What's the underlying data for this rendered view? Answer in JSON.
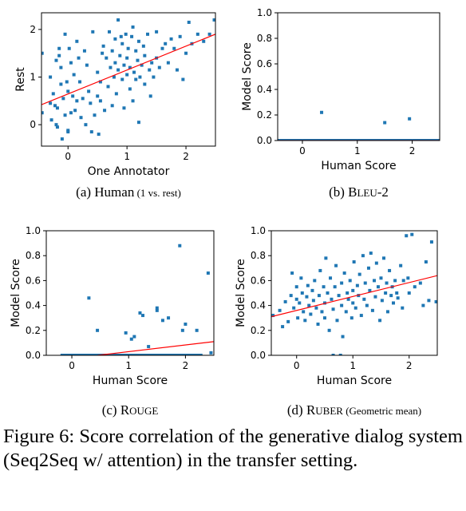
{
  "chart_data": [
    {
      "type": "scatter",
      "panel": "(a)",
      "subcaption_main": "Human",
      "subcaption_note": "(1 vs. rest)",
      "xlabel": "One Annotator",
      "ylabel": "Rest",
      "xlim": [
        -0.45,
        2.5
      ],
      "ylim": [
        -0.45,
        2.35
      ],
      "xticks": [
        "0",
        "1",
        "2"
      ],
      "xtick_values": [
        0,
        1,
        2
      ],
      "yticks": [
        "0",
        "1",
        "2"
      ],
      "ytick_values": [
        0,
        1,
        2
      ],
      "point_color": "#1f77b4",
      "fit_color": "#ff0000",
      "fit_line": [
        [
          -0.45,
          0.42
        ],
        [
          2.5,
          1.9
        ]
      ],
      "points": [
        [
          -0.44,
          1.5
        ],
        [
          -0.44,
          0.25
        ],
        [
          -0.3,
          0.45
        ],
        [
          -0.3,
          1.0
        ],
        [
          -0.28,
          0.1
        ],
        [
          -0.25,
          0.65
        ],
        [
          -0.22,
          0.4
        ],
        [
          -0.2,
          1.35
        ],
        [
          -0.2,
          0.0
        ],
        [
          -0.18,
          -0.05
        ],
        [
          -0.18,
          0.35
        ],
        [
          -0.15,
          1.45
        ],
        [
          -0.15,
          1.6
        ],
        [
          -0.12,
          1.2
        ],
        [
          -0.12,
          0.85
        ],
        [
          -0.1,
          -0.3
        ],
        [
          -0.08,
          0.55
        ],
        [
          -0.05,
          0.2
        ],
        [
          -0.05,
          1.9
        ],
        [
          -0.02,
          0.9
        ],
        [
          0.0,
          0.7
        ],
        [
          0.0,
          -0.15
        ],
        [
          0.0,
          -0.12
        ],
        [
          0.02,
          1.6
        ],
        [
          0.05,
          0.25
        ],
        [
          0.05,
          1.3
        ],
        [
          0.08,
          0.6
        ],
        [
          0.1,
          1.05
        ],
        [
          0.12,
          0.3
        ],
        [
          0.15,
          1.75
        ],
        [
          0.15,
          0.5
        ],
        [
          0.18,
          1.4
        ],
        [
          0.2,
          0.9
        ],
        [
          0.22,
          0.15
        ],
        [
          0.25,
          0.55
        ],
        [
          0.28,
          1.55
        ],
        [
          0.3,
          0.0
        ],
        [
          0.32,
          1.25
        ],
        [
          0.35,
          0.7
        ],
        [
          0.38,
          0.45
        ],
        [
          0.4,
          -0.15
        ],
        [
          0.42,
          1.95
        ],
        [
          0.45,
          0.2
        ],
        [
          0.5,
          0.6
        ],
        [
          0.5,
          1.1
        ],
        [
          0.52,
          -0.2
        ],
        [
          0.55,
          0.9
        ],
        [
          0.55,
          0.5
        ],
        [
          0.58,
          1.5
        ],
        [
          0.6,
          1.65
        ],
        [
          0.62,
          0.3
        ],
        [
          0.65,
          1.4
        ],
        [
          0.68,
          0.8
        ],
        [
          0.7,
          1.95
        ],
        [
          0.72,
          1.2
        ],
        [
          0.75,
          0.4
        ],
        [
          0.75,
          1.55
        ],
        [
          0.78,
          1.0
        ],
        [
          0.8,
          1.3
        ],
        [
          0.8,
          1.8
        ],
        [
          0.82,
          0.65
        ],
        [
          0.85,
          2.2
        ],
        [
          0.85,
          1.15
        ],
        [
          0.88,
          1.45
        ],
        [
          0.9,
          1.85
        ],
        [
          0.92,
          0.95
        ],
        [
          0.92,
          1.7
        ],
        [
          0.95,
          0.35
        ],
        [
          0.95,
          1.25
        ],
        [
          0.98,
          1.9
        ],
        [
          1.0,
          1.4
        ],
        [
          1.0,
          1.05
        ],
        [
          1.02,
          1.6
        ],
        [
          1.05,
          0.75
        ],
        [
          1.05,
          1.2
        ],
        [
          1.08,
          1.85
        ],
        [
          1.1,
          2.05
        ],
        [
          1.1,
          0.5
        ],
        [
          1.12,
          1.1
        ],
        [
          1.15,
          1.55
        ],
        [
          1.15,
          0.95
        ],
        [
          1.18,
          1.35
        ],
        [
          1.2,
          1.75
        ],
        [
          1.2,
          0.05
        ],
        [
          1.22,
          1.0
        ],
        [
          1.25,
          1.25
        ],
        [
          1.28,
          1.65
        ],
        [
          1.3,
          0.85
        ],
        [
          1.3,
          1.45
        ],
        [
          1.35,
          1.9
        ],
        [
          1.38,
          1.15
        ],
        [
          1.4,
          0.6
        ],
        [
          1.42,
          1.3
        ],
        [
          1.45,
          1.0
        ],
        [
          1.5,
          1.4
        ],
        [
          1.5,
          1.95
        ],
        [
          1.55,
          1.2
        ],
        [
          1.6,
          1.6
        ],
        [
          1.65,
          1.7
        ],
        [
          1.7,
          1.3
        ],
        [
          1.75,
          1.8
        ],
        [
          1.8,
          1.6
        ],
        [
          1.85,
          1.15
        ],
        [
          1.9,
          1.85
        ],
        [
          1.95,
          0.95
        ],
        [
          2.0,
          1.5
        ],
        [
          2.05,
          2.15
        ],
        [
          2.1,
          1.7
        ],
        [
          2.2,
          1.9
        ],
        [
          2.3,
          1.75
        ],
        [
          2.4,
          1.9
        ],
        [
          2.48,
          2.2
        ]
      ]
    },
    {
      "type": "scatter",
      "panel": "(b)",
      "subcaption_main": "B",
      "subcaption_sc": "LEU",
      "subcaption_tail": "-2",
      "xlabel": "Human Score",
      "ylabel": "Model Score",
      "xlim": [
        -0.45,
        2.5
      ],
      "ylim": [
        0.0,
        1.0
      ],
      "xticks": [
        "0",
        "1",
        "2"
      ],
      "xtick_values": [
        0,
        1,
        2
      ],
      "yticks": [
        "0.0",
        "0.2",
        "0.4",
        "0.6",
        "0.8",
        "1.0"
      ],
      "ytick_values": [
        0.0,
        0.2,
        0.4,
        0.6,
        0.8,
        1.0
      ],
      "point_color": "#1f77b4",
      "fit_color": "#ff0000",
      "fit_line": [
        [
          -0.45,
          0.0
        ],
        [
          2.5,
          0.0
        ]
      ],
      "points": [
        [
          0.35,
          0.22
        ],
        [
          1.5,
          0.14
        ],
        [
          1.95,
          0.17
        ]
      ],
      "zero_band": [
        -0.45,
        2.5
      ]
    },
    {
      "type": "scatter",
      "panel": "(c)",
      "subcaption_main": "R",
      "subcaption_sc": "OUGE",
      "subcaption_tail": "",
      "xlabel": "Human Score",
      "ylabel": "Model Score",
      "xlim": [
        -0.45,
        2.5
      ],
      "ylim": [
        0.0,
        1.0
      ],
      "xticks": [
        "0",
        "1",
        "2"
      ],
      "xtick_values": [
        0,
        1,
        2
      ],
      "yticks": [
        "0.0",
        "0.2",
        "0.4",
        "0.6",
        "0.8",
        "1.0"
      ],
      "ytick_values": [
        0.0,
        0.2,
        0.4,
        0.6,
        0.8,
        1.0
      ],
      "point_color": "#1f77b4",
      "fit_color": "#ff0000",
      "fit_line": [
        [
          0.45,
          0.0
        ],
        [
          2.5,
          0.11
        ]
      ],
      "points": [
        [
          0.3,
          0.46
        ],
        [
          0.45,
          0.2
        ],
        [
          0.95,
          0.18
        ],
        [
          1.05,
          0.13
        ],
        [
          1.1,
          0.15
        ],
        [
          1.2,
          0.34
        ],
        [
          1.25,
          0.32
        ],
        [
          1.35,
          0.07
        ],
        [
          1.5,
          0.38
        ],
        [
          1.5,
          0.36
        ],
        [
          1.6,
          0.28
        ],
        [
          1.7,
          0.3
        ],
        [
          1.9,
          0.88
        ],
        [
          1.95,
          0.2
        ],
        [
          2.0,
          0.25
        ],
        [
          2.2,
          0.2
        ],
        [
          2.4,
          0.66
        ],
        [
          2.45,
          0.02
        ]
      ],
      "zero_band": [
        -0.2,
        2.3
      ]
    },
    {
      "type": "scatter",
      "panel": "(d)",
      "subcaption_main": "R",
      "subcaption_sc": "UBER",
      "subcaption_note": "(Geometric mean)",
      "xlabel": "Human Score",
      "ylabel": "Model Score",
      "xlim": [
        -0.45,
        2.5
      ],
      "ylim": [
        0.0,
        1.0
      ],
      "xticks": [
        "0",
        "1",
        "2"
      ],
      "xtick_values": [
        0,
        1,
        2
      ],
      "yticks": [
        "0.0",
        "0.2",
        "0.4",
        "0.6",
        "0.8",
        "1.0"
      ],
      "ytick_values": [
        0.0,
        0.2,
        0.4,
        0.6,
        0.8,
        1.0
      ],
      "point_color": "#1f77b4",
      "fit_color": "#ff0000",
      "fit_line": [
        [
          -0.45,
          0.31
        ],
        [
          2.5,
          0.64
        ]
      ],
      "points": [
        [
          -0.42,
          0.32
        ],
        [
          -0.3,
          0.36
        ],
        [
          -0.25,
          0.23
        ],
        [
          -0.2,
          0.43
        ],
        [
          -0.15,
          0.27
        ],
        [
          -0.1,
          0.48
        ],
        [
          -0.08,
          0.66
        ],
        [
          -0.05,
          0.38
        ],
        [
          0.0,
          0.45
        ],
        [
          0.0,
          0.55
        ],
        [
          0.02,
          0.3
        ],
        [
          0.05,
          0.42
        ],
        [
          0.08,
          0.62
        ],
        [
          0.1,
          0.5
        ],
        [
          0.12,
          0.35
        ],
        [
          0.15,
          0.28
        ],
        [
          0.18,
          0.47
        ],
        [
          0.2,
          0.56
        ],
        [
          0.22,
          0.4
        ],
        [
          0.25,
          0.33
        ],
        [
          0.28,
          0.52
        ],
        [
          0.3,
          0.44
        ],
        [
          0.32,
          0.6
        ],
        [
          0.35,
          0.38
        ],
        [
          0.38,
          0.25
        ],
        [
          0.4,
          0.48
        ],
        [
          0.42,
          0.68
        ],
        [
          0.45,
          0.35
        ],
        [
          0.48,
          0.55
        ],
        [
          0.5,
          0.3
        ],
        [
          0.5,
          0.42
        ],
        [
          0.52,
          0.78
        ],
        [
          0.55,
          0.5
        ],
        [
          0.58,
          0.2
        ],
        [
          0.6,
          0.62
        ],
        [
          0.62,
          0.45
        ],
        [
          0.65,
          0.0
        ],
        [
          0.65,
          0.37
        ],
        [
          0.68,
          0.55
        ],
        [
          0.7,
          0.72
        ],
        [
          0.72,
          0.28
        ],
        [
          0.75,
          0.48
        ],
        [
          0.78,
          0.0
        ],
        [
          0.8,
          0.4
        ],
        [
          0.8,
          0.58
        ],
        [
          0.82,
          0.15
        ],
        [
          0.85,
          0.66
        ],
        [
          0.88,
          0.35
        ],
        [
          0.9,
          0.5
        ],
        [
          0.92,
          0.45
        ],
        [
          0.95,
          0.6
        ],
        [
          0.98,
          0.3
        ],
        [
          1.0,
          0.52
        ],
        [
          1.0,
          0.42
        ],
        [
          1.02,
          0.75
        ],
        [
          1.05,
          0.38
        ],
        [
          1.08,
          0.56
        ],
        [
          1.1,
          0.48
        ],
        [
          1.12,
          0.65
        ],
        [
          1.15,
          0.32
        ],
        [
          1.18,
          0.8
        ],
        [
          1.2,
          0.45
        ],
        [
          1.22,
          0.58
        ],
        [
          1.25,
          0.4
        ],
        [
          1.28,
          0.7
        ],
        [
          1.3,
          0.52
        ],
        [
          1.32,
          0.82
        ],
        [
          1.35,
          0.36
        ],
        [
          1.38,
          0.6
        ],
        [
          1.4,
          0.47
        ],
        [
          1.42,
          0.74
        ],
        [
          1.45,
          0.55
        ],
        [
          1.48,
          0.28
        ],
        [
          1.5,
          0.62
        ],
        [
          1.52,
          0.44
        ],
        [
          1.55,
          0.78
        ],
        [
          1.58,
          0.5
        ],
        [
          1.6,
          0.58
        ],
        [
          1.62,
          0.35
        ],
        [
          1.65,
          0.68
        ],
        [
          1.68,
          0.48
        ],
        [
          1.7,
          0.55
        ],
        [
          1.72,
          0.42
        ],
        [
          1.75,
          0.6
        ],
        [
          1.78,
          0.5
        ],
        [
          1.8,
          0.46
        ],
        [
          1.85,
          0.72
        ],
        [
          1.88,
          0.38
        ],
        [
          1.9,
          0.6
        ],
        [
          1.95,
          0.96
        ],
        [
          1.98,
          0.62
        ],
        [
          2.0,
          0.5
        ],
        [
          2.05,
          0.97
        ],
        [
          2.1,
          0.55
        ],
        [
          2.2,
          0.58
        ],
        [
          2.25,
          0.4
        ],
        [
          2.3,
          0.75
        ],
        [
          2.35,
          0.44
        ],
        [
          2.4,
          0.91
        ],
        [
          2.48,
          0.43
        ]
      ]
    }
  ],
  "caption": {
    "label": "Figure 6:",
    "text": "Score correlation of the generative dialog system (Seq2Seq w/ attention) in the transfer setting."
  },
  "colors": {
    "points": "#1f77b4",
    "fit": "#ff0000",
    "axes": "#000000"
  }
}
